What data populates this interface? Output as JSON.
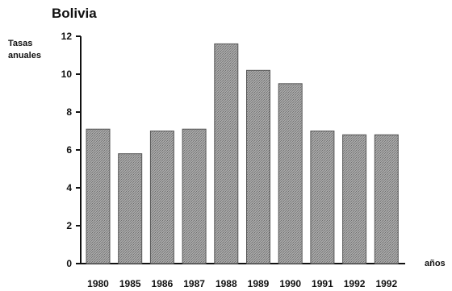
{
  "chart_data": {
    "type": "bar",
    "title": "Bolivia",
    "ylabel": [
      "Tasas",
      "anuales"
    ],
    "xlabel": "años",
    "categories": [
      "1980",
      "1985",
      "1986",
      "1987",
      "1988",
      "1989",
      "1990",
      "1991",
      "1992",
      "1992"
    ],
    "values": [
      7.1,
      5.8,
      7.0,
      7.1,
      11.6,
      10.2,
      9.5,
      7.0,
      6.8,
      6.8
    ],
    "ylim": [
      0,
      12
    ],
    "yticks": [
      0,
      2,
      4,
      6,
      8,
      10,
      12
    ],
    "grid": false,
    "bar_color": "#8f8f8f",
    "background": "#ffffff"
  }
}
